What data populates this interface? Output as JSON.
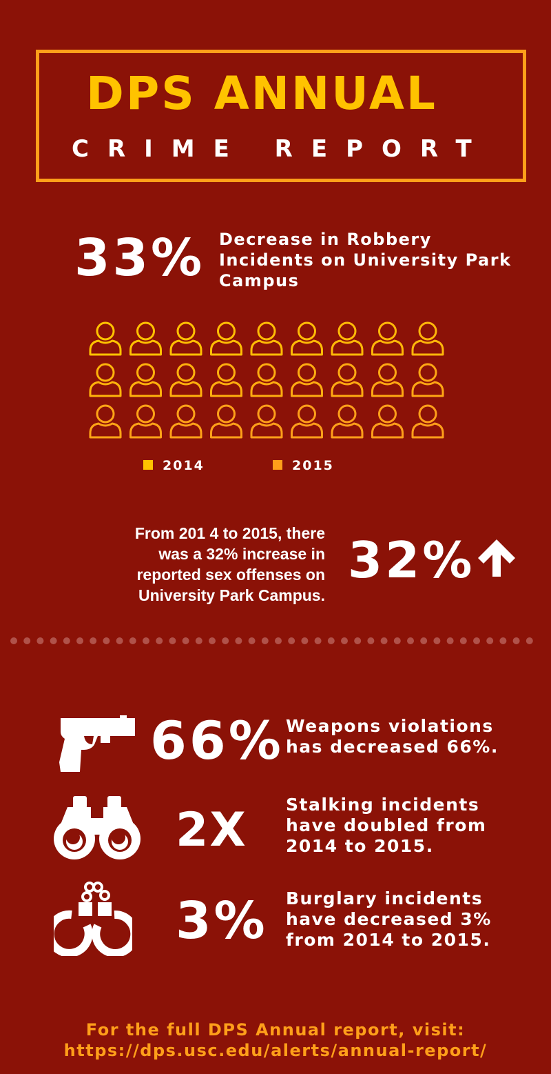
{
  "title": {
    "main": "DPS ANNUAL",
    "sub": "CRIME REPORT"
  },
  "robbery": {
    "value": "33%",
    "text": "Decrease in Robbery\nIncidents on University Park\nCampus"
  },
  "pictogram": {
    "rows": 3,
    "columns": 9,
    "legend": [
      {
        "label": "2014",
        "color": "#ffc300"
      },
      {
        "label": "2015",
        "color": "#ff9f1a"
      }
    ]
  },
  "sex_offenses": {
    "text": "From 201 4 to 2015, there\nwas a 32% increase in\nreported sex offenses on\nUniversity Park Campus.",
    "value": "32%",
    "icon": "arrow-up-icon"
  },
  "weapons": {
    "icon": "handgun-icon",
    "value": "66%",
    "text": "Weapons violations\nhas decreased 66%."
  },
  "stalking": {
    "icon": "binoculars-icon",
    "value": "2X",
    "text": "Stalking incidents\nhave doubled from\n2014 to 2015."
  },
  "burglary": {
    "icon": "handcuffs-icon",
    "value": "3%",
    "text": "Burglary incidents\nhave decreased 3%\nfrom 2014 to 2015."
  },
  "footer": {
    "text": "For the full DPS Annual report, visit:\nhttps://dps.usc.edu/alerts/annual-report/"
  },
  "colors": {
    "background": "#8b1207",
    "gold": "#ffc300",
    "orange": "#ff9f1a",
    "dots": "#b0524a"
  }
}
